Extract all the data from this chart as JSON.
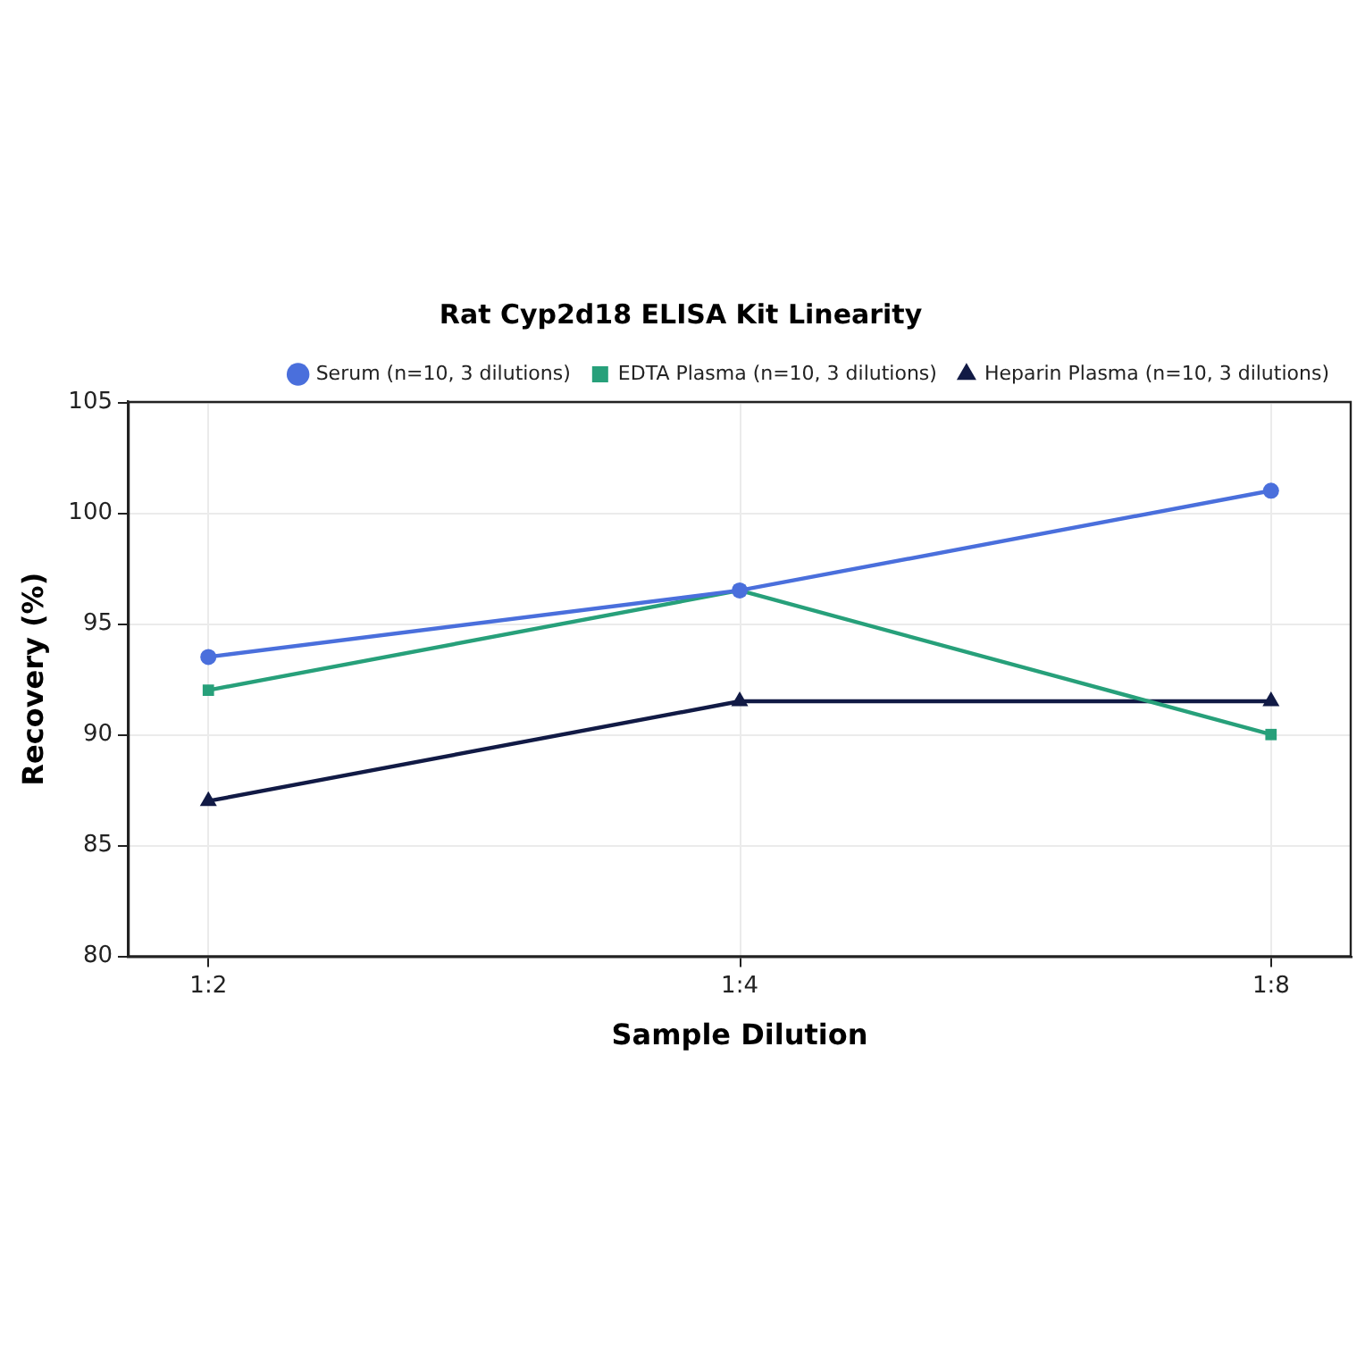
{
  "chart_data": {
    "type": "line",
    "title": "Rat Cyp2d18 ELISA Kit Linearity",
    "xlabel": "Sample Dilution",
    "ylabel": "Recovery (%)",
    "categories": [
      "1:2",
      "1:4",
      "1:8"
    ],
    "series": [
      {
        "name": "Serum (n=10, 3 dilutions)",
        "color": "#4a6fdc",
        "values": [
          93.5,
          96.5,
          101
        ],
        "marker": "circle"
      },
      {
        "name": "EDTA Plasma (n=10, 3 dilutions)",
        "color": "#27a07a",
        "values": [
          92,
          96.5,
          90
        ],
        "marker": "square"
      },
      {
        "name": "Heparin Plasma (n=10, 3 dilutions)",
        "color": "#111a45",
        "values": [
          87,
          91.5,
          91.5
        ],
        "marker": "triangle"
      }
    ],
    "ylim": [
      80,
      105
    ],
    "yticks": [
      80,
      85,
      90,
      95,
      100,
      105
    ],
    "grid": true,
    "legend": "top right",
    "line_style": "solid"
  }
}
